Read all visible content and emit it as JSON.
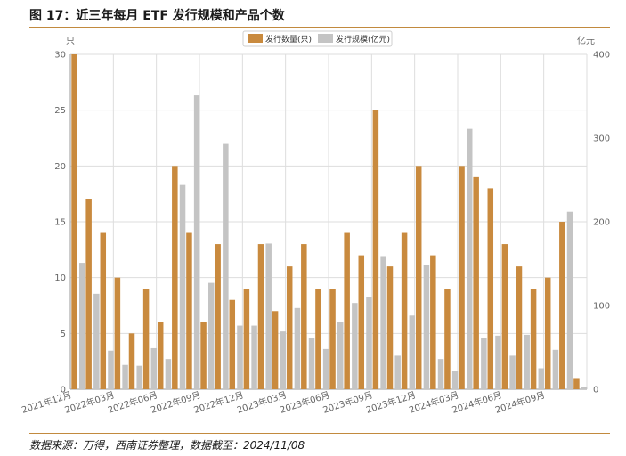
{
  "header": {
    "title": "图 17：近三年每月 ETF 发行规模和产品个数"
  },
  "footer": {
    "source": "数据来源：万得，西南证券整理，数据截至：2024/11/08"
  },
  "chart_data": {
    "type": "bar",
    "y_left_unit": "只",
    "y_right_unit": "亿元",
    "ylim_left": [
      0,
      30
    ],
    "ylim_right": [
      0,
      400
    ],
    "yticks_left": [
      0,
      5,
      10,
      15,
      20,
      25,
      30
    ],
    "yticks_right": [
      0,
      100,
      200,
      300,
      400
    ],
    "x_tick_labels": [
      "2021年12月",
      "2022年03月",
      "2022年06月",
      "2022年09月",
      "2022年12月",
      "2023年03月",
      "2023年06月",
      "2023年09月",
      "2023年12月",
      "2024年03月",
      "2024年06月",
      "2024年09月"
    ],
    "x_tick_every": 3,
    "legend_position": "top-center",
    "grid": true,
    "colors": {
      "count": "#c98a3e",
      "scale": "#c4c4c4"
    },
    "series": [
      {
        "name": "发行数量(只)",
        "axis": "left",
        "values": [
          30,
          17,
          14,
          10,
          5,
          9,
          6,
          20,
          14,
          6,
          13,
          8,
          9,
          13,
          7,
          11,
          13,
          9,
          9,
          14,
          12,
          25,
          11,
          14,
          20,
          12,
          9,
          20,
          19,
          18,
          13,
          11,
          9,
          10,
          15,
          1
        ]
      },
      {
        "name": "发行规模(亿元)",
        "axis": "right",
        "values": [
          151,
          114,
          46,
          29,
          28,
          49,
          36,
          244,
          351,
          127,
          293,
          76,
          76,
          174,
          69,
          97,
          61,
          48,
          80,
          103,
          110,
          158,
          40,
          88,
          148,
          36,
          22,
          311,
          61,
          64,
          40,
          65,
          25,
          47,
          212,
          3
        ]
      }
    ]
  }
}
